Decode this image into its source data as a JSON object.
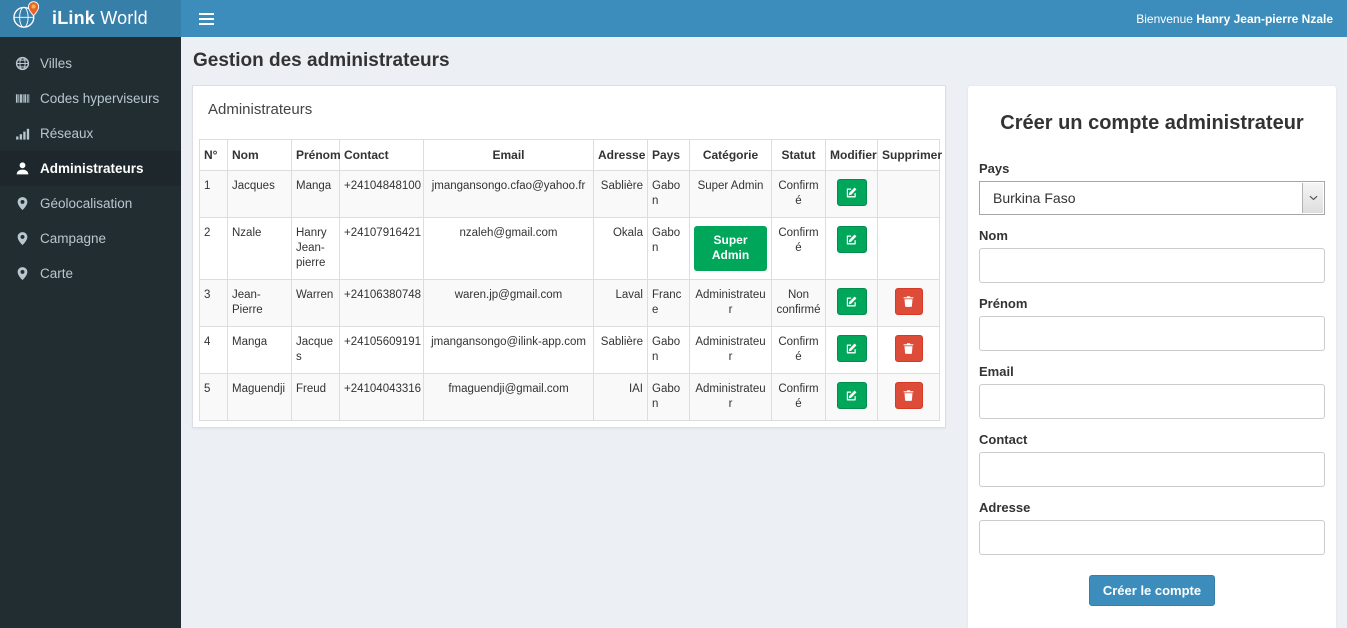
{
  "app": {
    "title_bold": "iLink",
    "title_rest": " World",
    "welcome_prefix": "Bienvenue ",
    "welcome_name": "Hanry Jean-pierre Nzale"
  },
  "sidebar": {
    "items": [
      {
        "key": "villes",
        "label": "Villes",
        "icon": "globe-icon",
        "active": false
      },
      {
        "key": "codes-hyperviseurs",
        "label": "Codes hyperviseurs",
        "icon": "barcode-icon",
        "active": false
      },
      {
        "key": "reseaux",
        "label": "Réseaux",
        "icon": "signal-icon",
        "active": false
      },
      {
        "key": "administrateurs",
        "label": "Administrateurs",
        "icon": "user-icon",
        "active": true
      },
      {
        "key": "geolocalisation",
        "label": "Géolocalisation",
        "icon": "map-marker-icon",
        "active": false
      },
      {
        "key": "campagne",
        "label": "Campagne",
        "icon": "map-marker-icon",
        "active": false
      },
      {
        "key": "carte",
        "label": "Carte",
        "icon": "map-marker-icon",
        "active": false
      }
    ]
  },
  "page": {
    "title": "Gestion des administrateurs"
  },
  "admin_panel": {
    "title": "Administrateurs",
    "table": {
      "headers": [
        "N°",
        "Nom",
        "Prénom",
        "Contact",
        "Email",
        "Adresse",
        "Pays",
        "Catégorie",
        "Statut",
        "Modifier",
        "Supprimer"
      ],
      "rows": [
        {
          "num": "1",
          "nom": "Jacques",
          "prenom": "Manga",
          "contact": "+24104848100",
          "email": "jmangansongo.cfao@yahoo.fr",
          "adresse": "Sablière",
          "pays": "Gabon",
          "categorie": "Super Admin",
          "categorie_badge": false,
          "statut": "Confirmé",
          "can_delete": false
        },
        {
          "num": "2",
          "nom": "Nzale",
          "prenom": "Hanry Jean-pierre",
          "contact": "+24107916421",
          "email": "nzaleh@gmail.com",
          "adresse": "Okala",
          "pays": "Gabon",
          "categorie": "Super Admin",
          "categorie_badge": true,
          "statut": "Confirmé",
          "can_delete": false
        },
        {
          "num": "3",
          "nom": "Jean-Pierre",
          "prenom": "Warren",
          "contact": "+24106380748",
          "email": "waren.jp@gmail.com",
          "adresse": "Laval",
          "pays": "France",
          "categorie": "Administrateur",
          "categorie_badge": false,
          "statut": "Non confirmé",
          "can_delete": true
        },
        {
          "num": "4",
          "nom": "Manga",
          "prenom": "Jacques",
          "contact": "+24105609191",
          "email": "jmangansongo@ilink-app.com",
          "adresse": "Sablière",
          "pays": "Gabon",
          "categorie": "Administrateur",
          "categorie_badge": false,
          "statut": "Confirmé",
          "can_delete": true
        },
        {
          "num": "5",
          "nom": "Maguendji",
          "prenom": "Freud",
          "contact": "+24104043316",
          "email": "fmaguendji@gmail.com",
          "adresse": "IAI",
          "pays": "Gabon",
          "categorie": "Administrateur",
          "categorie_badge": false,
          "statut": "Confirmé",
          "can_delete": true
        }
      ],
      "edit_button_icon": "edit-icon",
      "delete_button_icon": "trash-icon"
    }
  },
  "form": {
    "title": "Créer un compte administrateur",
    "fields": [
      {
        "key": "pays",
        "label": "Pays",
        "type": "select",
        "value": "Burkina Faso"
      },
      {
        "key": "nom",
        "label": "Nom",
        "type": "text",
        "value": "",
        "placeholder": ""
      },
      {
        "key": "prenom",
        "label": "Prénom",
        "type": "text",
        "value": "",
        "placeholder": ""
      },
      {
        "key": "email",
        "label": "Email",
        "type": "text",
        "value": "",
        "placeholder": ""
      },
      {
        "key": "contact",
        "label": "Contact",
        "type": "text",
        "value": "",
        "placeholder": ""
      },
      {
        "key": "adresse",
        "label": "Adresse",
        "type": "text",
        "value": "",
        "placeholder": ""
      }
    ],
    "submit_label": "Créer le compte"
  },
  "colors": {
    "navbar": "#3c8dbc",
    "logo_bg": "#367fa9",
    "primary": "#3c8dbc",
    "sidebar_bg": "#222d32",
    "sidebar_active_bg": "#1e282c",
    "success": "#00a65a",
    "danger": "#dd4b39",
    "content_bg": "#ecf0f5",
    "pin_orange": "#e8632c"
  }
}
